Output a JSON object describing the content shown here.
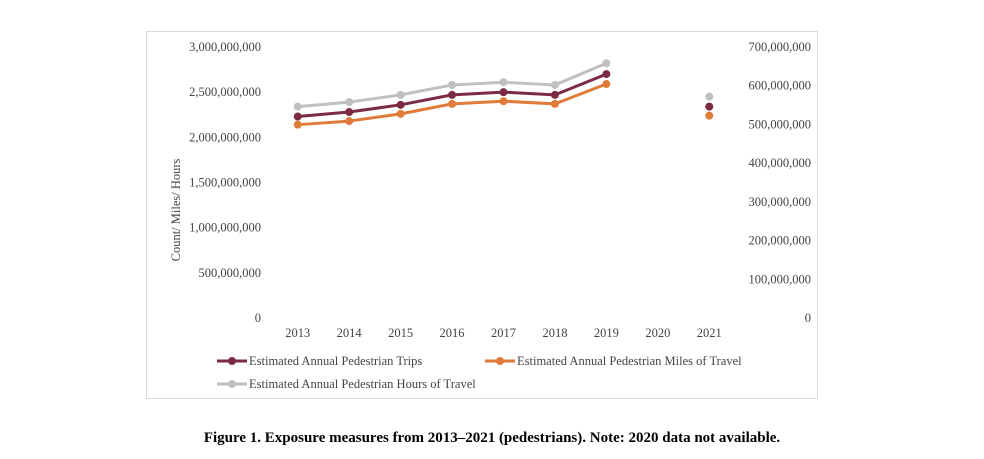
{
  "caption": "Figure 1. Exposure measures from 2013–2021 (pedestrians). Note: 2020 data not available.",
  "chart_data": {
    "type": "line",
    "ylabel": "Count/ Miles/ Hours",
    "x": [
      "2013",
      "2014",
      "2015",
      "2016",
      "2017",
      "2018",
      "2019",
      "2020",
      "2021"
    ],
    "ylim_left": [
      0,
      3000000000
    ],
    "yticks_left": [
      "0",
      "500,000,000",
      "1,000,000,000",
      "1,500,000,000",
      "2,000,000,000",
      "2,500,000,000",
      "3,000,000,000"
    ],
    "ylim_right": [
      0,
      700000000
    ],
    "yticks_right": [
      "0",
      "100,000,000",
      "200,000,000",
      "300,000,000",
      "400,000,000",
      "500,000,000",
      "600,000,000",
      "700,000,000"
    ],
    "grid": false,
    "legend_position": "bottom",
    "series": [
      {
        "name": "Estimated Annual Pedestrian Trips",
        "color": "#7b2c43",
        "axis": "left",
        "values": [
          2230000000,
          2280000000,
          2360000000,
          2470000000,
          2500000000,
          2470000000,
          2700000000,
          null,
          2340000000
        ]
      },
      {
        "name": "Estimated Annual Pedestrian Miles of Travel",
        "color": "#e07b39",
        "axis": "left",
        "values": [
          2140000000,
          2180000000,
          2260000000,
          2370000000,
          2400000000,
          2370000000,
          2590000000,
          null,
          2240000000
        ]
      },
      {
        "name": "Estimated Annual Pedestrian Hours of Travel",
        "color": "#c0c0c0",
        "axis": "left",
        "values": [
          2340000000,
          2390000000,
          2470000000,
          2580000000,
          2610000000,
          2580000000,
          2820000000,
          null,
          2450000000
        ]
      }
    ]
  }
}
